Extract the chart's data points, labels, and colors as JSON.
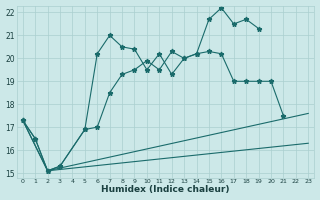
{
  "xlabel": "Humidex (Indice chaleur)",
  "bg_color": "#cce8e8",
  "grid_color": "#aacfcf",
  "line_color": "#1a6b6b",
  "xlim": [
    -0.5,
    23.5
  ],
  "ylim": [
    14.8,
    22.3
  ],
  "yticks": [
    15,
    16,
    17,
    18,
    19,
    20,
    21,
    22
  ],
  "xticks": [
    0,
    1,
    2,
    3,
    4,
    5,
    6,
    7,
    8,
    9,
    10,
    11,
    12,
    13,
    14,
    15,
    16,
    17,
    18,
    19,
    20,
    21,
    22,
    23
  ],
  "line1_x": [
    0,
    1,
    2,
    3,
    5,
    6,
    7,
    8,
    9,
    10,
    11,
    12,
    13,
    14,
    15,
    16,
    17,
    18,
    19
  ],
  "line1_y": [
    17.3,
    16.5,
    15.1,
    15.3,
    16.9,
    20.2,
    21.0,
    20.5,
    20.4,
    19.5,
    20.2,
    19.3,
    20.0,
    20.2,
    21.7,
    22.2,
    21.5,
    21.7,
    21.3
  ],
  "line2_x": [
    0,
    1,
    2,
    3,
    5,
    6,
    7,
    8,
    9,
    10,
    11,
    12,
    13,
    14,
    15,
    16,
    17,
    18,
    19,
    20,
    21
  ],
  "line2_y": [
    17.3,
    16.5,
    15.1,
    15.3,
    16.9,
    17.0,
    18.5,
    19.3,
    19.5,
    19.9,
    19.5,
    20.3,
    20.0,
    20.2,
    20.3,
    20.2,
    19.0,
    19.0,
    19.0,
    19.0,
    17.5
  ],
  "line3_x": [
    0,
    2,
    23
  ],
  "line3_y": [
    17.3,
    15.1,
    17.6
  ],
  "line4_x": [
    0,
    2,
    23
  ],
  "line4_y": [
    17.3,
    15.1,
    16.3
  ]
}
